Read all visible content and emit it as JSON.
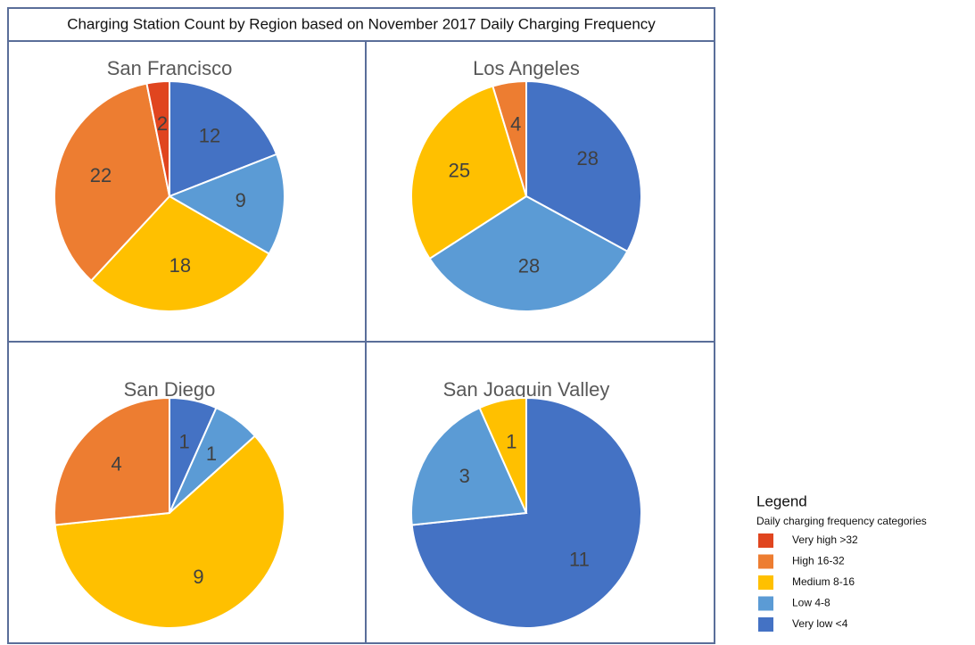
{
  "title": "Charging Station Count by Region based on November 2017 Daily Charging Frequency",
  "legend": {
    "title": "Legend",
    "subtitle": "Daily charging frequency categories",
    "items": [
      {
        "name": "Very high >32",
        "color": "#e0451f"
      },
      {
        "name": "High 16-32",
        "color": "#ed7d31"
      },
      {
        "name": "Medium 8-16",
        "color": "#ffc000"
      },
      {
        "name": "Low 4-8",
        "color": "#5b9bd5"
      },
      {
        "name": "Very low <4",
        "color": "#4472c4"
      }
    ]
  },
  "chart_data": [
    {
      "type": "pie",
      "title": "San Francisco",
      "values": [
        12,
        9,
        18,
        22,
        2
      ],
      "colors": [
        "#4472c4",
        "#5b9bd5",
        "#ffc000",
        "#ed7d31",
        "#e0451f"
      ]
    },
    {
      "type": "pie",
      "title": "Los Angeles",
      "values": [
        28,
        28,
        25,
        4
      ],
      "colors": [
        "#4472c4",
        "#5b9bd5",
        "#ffc000",
        "#ed7d31"
      ]
    },
    {
      "type": "pie",
      "title": "San Diego",
      "values": [
        1,
        1,
        9,
        4
      ],
      "colors": [
        "#4472c4",
        "#5b9bd5",
        "#ffc000",
        "#ed7d31"
      ]
    },
    {
      "type": "pie",
      "title": "San Joaquin Valley",
      "values": [
        11,
        3,
        1
      ],
      "colors": [
        "#4472c4",
        "#5b9bd5",
        "#ffc000"
      ]
    }
  ]
}
